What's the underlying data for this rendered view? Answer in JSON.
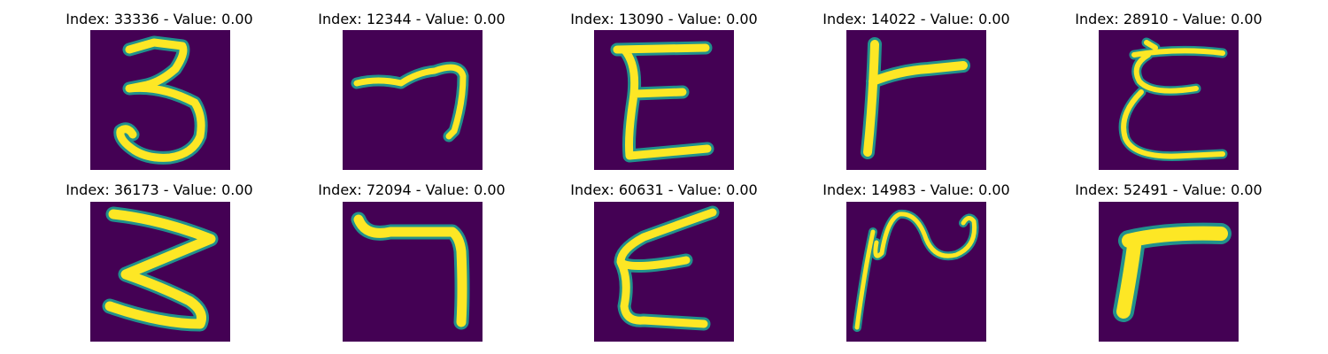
{
  "chart_data": {
    "type": "image_grid",
    "rows": 2,
    "columns": 5,
    "colormap": "viridis",
    "colors": {
      "background": "#440154",
      "stroke": "#fde725",
      "edge": "#21918c",
      "edge_mid": "#35b779"
    },
    "panels": [
      {
        "index": 33336,
        "value": 0.0,
        "title": "Index: 33336 - Value: 0.00",
        "glyph": "3"
      },
      {
        "index": 12344,
        "value": 0.0,
        "title": "Index: 12344 - Value: 0.00",
        "glyph": "7"
      },
      {
        "index": 13090,
        "value": 0.0,
        "title": "Index: 13090 - Value: 0.00",
        "glyph": "E"
      },
      {
        "index": 14022,
        "value": 0.0,
        "title": "Index: 14022 - Value: 0.00",
        "glyph": "r"
      },
      {
        "index": 28910,
        "value": 0.0,
        "title": "Index: 28910 - Value: 0.00",
        "glyph": "E"
      },
      {
        "index": 36173,
        "value": 0.0,
        "title": "Index: 36173 - Value: 0.00",
        "glyph": "3"
      },
      {
        "index": 72094,
        "value": 0.0,
        "title": "Index: 72094 - Value: 0.00",
        "glyph": "7"
      },
      {
        "index": 60631,
        "value": 0.0,
        "title": "Index: 60631 - Value: 0.00",
        "glyph": "E"
      },
      {
        "index": 14983,
        "value": 0.0,
        "title": "Index: 14983 - Value: 0.00",
        "glyph": "2"
      },
      {
        "index": 52491,
        "value": 0.0,
        "title": "Index: 52491 - Value: 0.00",
        "glyph": "7"
      }
    ]
  }
}
